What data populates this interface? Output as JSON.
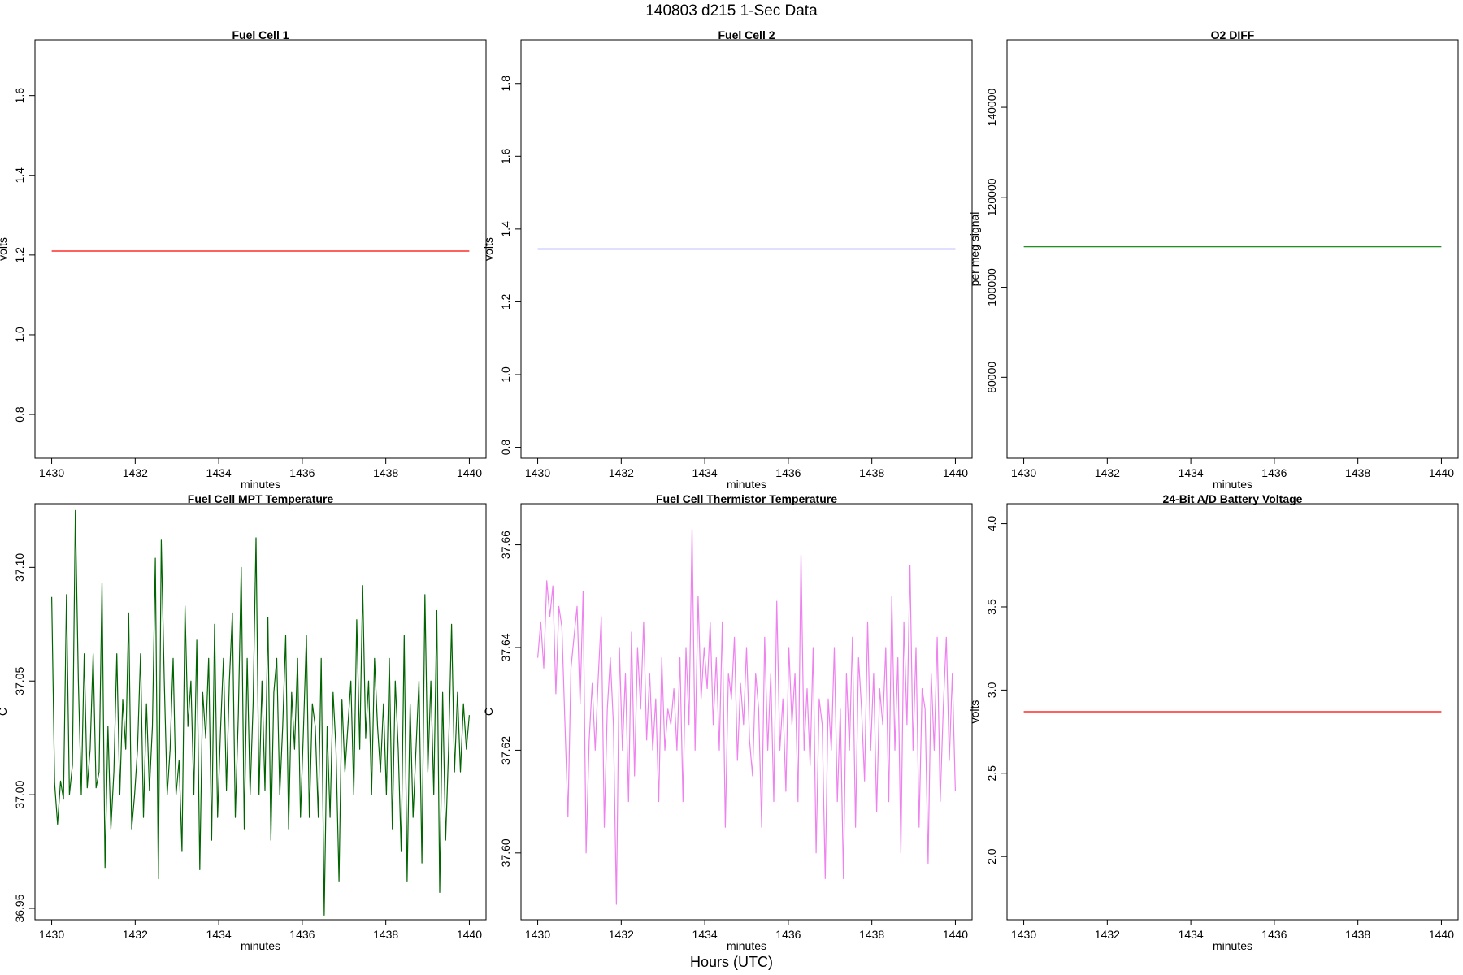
{
  "title": "140803   d215   1-Sec Data",
  "overall_xlabel": "Hours (UTC)",
  "chart_data": [
    {
      "type": "line",
      "title": "Fuel Cell 1",
      "xlabel": "minutes",
      "ylabel": "volts",
      "xlim": [
        1429.6,
        1440.4
      ],
      "ylim": [
        0.69,
        1.74
      ],
      "xticks": [
        1430,
        1432,
        1434,
        1436,
        1438,
        1440
      ],
      "yticks": [
        0.8,
        1.0,
        1.2,
        1.4,
        1.6
      ],
      "ytick_labels": [
        "0.8",
        "1.0",
        "1.2",
        "1.4",
        "1.6"
      ],
      "series": [
        {
          "color": "#ff0000",
          "x": [
            1430,
            1440
          ],
          "y": [
            1.21,
            1.21
          ]
        }
      ]
    },
    {
      "type": "line",
      "title": "Fuel Cell 2",
      "xlabel": "minutes",
      "ylabel": "volts",
      "xlim": [
        1429.6,
        1440.4
      ],
      "ylim": [
        0.77,
        1.92
      ],
      "xticks": [
        1430,
        1432,
        1434,
        1436,
        1438,
        1440
      ],
      "yticks": [
        0.8,
        1.0,
        1.2,
        1.4,
        1.6,
        1.8
      ],
      "ytick_labels": [
        "0.8",
        "1.0",
        "1.2",
        "1.4",
        "1.6",
        "1.8"
      ],
      "series": [
        {
          "color": "#0000ff",
          "x": [
            1430,
            1440
          ],
          "y": [
            1.345,
            1.345
          ]
        }
      ]
    },
    {
      "type": "line",
      "title": "O2 DIFF",
      "xlabel": "minutes",
      "ylabel": "per meg signal",
      "xlim": [
        1429.6,
        1440.4
      ],
      "ylim": [
        62000,
        155000
      ],
      "xticks": [
        1430,
        1432,
        1434,
        1436,
        1438,
        1440
      ],
      "yticks": [
        80000,
        100000,
        120000,
        140000
      ],
      "ytick_labels": [
        "80000",
        "100000",
        "120000",
        "140000"
      ],
      "series": [
        {
          "color": "#008000",
          "x": [
            1430,
            1440
          ],
          "y": [
            109000,
            109000
          ]
        }
      ]
    },
    {
      "type": "line",
      "title": "Fuel Cell MPT Temperature",
      "xlabel": "minutes",
      "ylabel": "C",
      "xlim": [
        1429.6,
        1440.4
      ],
      "ylim": [
        36.945,
        37.128
      ],
      "xticks": [
        1430,
        1432,
        1434,
        1436,
        1438,
        1440
      ],
      "yticks": [
        36.95,
        37.0,
        37.05,
        37.1
      ],
      "ytick_labels": [
        "36.95",
        "37.00",
        "37.05",
        "37.10"
      ],
      "series": [
        {
          "color": "#006400",
          "x_start": 1430,
          "x_end": 1440,
          "y": [
            37.087,
            37.005,
            36.987,
            37.006,
            36.998,
            37.088,
            37.0,
            37.013,
            37.125,
            37.05,
            37.0,
            37.062,
            37.003,
            37.02,
            37.062,
            37.003,
            37.01,
            37.093,
            36.968,
            37.03,
            36.985,
            37.01,
            37.062,
            37.0,
            37.042,
            37.02,
            37.08,
            36.985,
            37.0,
            37.02,
            37.062,
            36.99,
            37.04,
            37.002,
            37.03,
            37.104,
            36.963,
            37.112,
            37.05,
            37.0,
            37.02,
            37.06,
            37.0,
            37.015,
            36.975,
            37.083,
            37.03,
            37.05,
            37.0,
            37.068,
            36.967,
            37.045,
            37.025,
            37.06,
            36.98,
            37.075,
            36.99,
            37.028,
            37.06,
            37.002,
            37.05,
            37.08,
            36.99,
            37.035,
            37.1,
            36.985,
            37.06,
            37.0,
            37.04,
            37.113,
            37.0,
            37.05,
            37.002,
            37.078,
            36.98,
            37.045,
            37.06,
            37.0,
            37.03,
            37.07,
            36.985,
            37.045,
            37.02,
            37.06,
            36.99,
            37.028,
            37.07,
            36.99,
            37.04,
            37.03,
            36.99,
            37.06,
            36.947,
            37.03,
            36.99,
            37.045,
            37.02,
            36.962,
            37.042,
            37.01,
            37.03,
            37.05,
            37.0,
            37.077,
            37.02,
            37.092,
            37.025,
            37.05,
            37.0,
            37.06,
            37.03,
            37.01,
            37.04,
            37.0,
            37.06,
            36.985,
            37.05,
            37.02,
            36.975,
            37.07,
            36.962,
            37.04,
            36.99,
            37.02,
            37.05,
            36.97,
            37.088,
            37.01,
            37.05,
            37.0,
            37.081,
            36.957,
            37.045,
            36.98,
            37.02,
            37.075,
            37.01,
            37.045,
            37.01,
            37.04,
            37.02,
            37.035
          ]
        }
      ]
    },
    {
      "type": "line",
      "title": "Fuel Cell Thermistor Temperature",
      "xlabel": "minutes",
      "ylabel": "C",
      "xlim": [
        1429.6,
        1440.4
      ],
      "ylim": [
        37.587,
        37.668
      ],
      "xticks": [
        1430,
        1432,
        1434,
        1436,
        1438,
        1440
      ],
      "yticks": [
        37.6,
        37.62,
        37.64,
        37.66
      ],
      "ytick_labels": [
        "37.60",
        "37.62",
        "37.64",
        "37.66"
      ],
      "series": [
        {
          "color": "#ee82ee",
          "x_start": 1430,
          "x_end": 1440,
          "y": [
            37.638,
            37.645,
            37.636,
            37.653,
            37.646,
            37.652,
            37.631,
            37.648,
            37.644,
            37.625,
            37.607,
            37.636,
            37.642,
            37.648,
            37.629,
            37.651,
            37.6,
            37.622,
            37.633,
            37.62,
            37.634,
            37.646,
            37.605,
            37.628,
            37.638,
            37.625,
            37.59,
            37.64,
            37.62,
            37.635,
            37.61,
            37.643,
            37.615,
            37.64,
            37.628,
            37.645,
            37.622,
            37.635,
            37.62,
            37.63,
            37.61,
            37.638,
            37.62,
            37.628,
            37.625,
            37.632,
            37.62,
            37.638,
            37.61,
            37.64,
            37.625,
            37.663,
            37.62,
            37.65,
            37.63,
            37.64,
            37.632,
            37.645,
            37.625,
            37.638,
            37.62,
            37.645,
            37.605,
            37.635,
            37.63,
            37.642,
            37.618,
            37.633,
            37.625,
            37.64,
            37.622,
            37.615,
            37.635,
            37.628,
            37.605,
            37.642,
            37.62,
            37.635,
            37.61,
            37.649,
            37.62,
            37.63,
            37.612,
            37.64,
            37.625,
            37.635,
            37.61,
            37.658,
            37.62,
            37.632,
            37.617,
            37.64,
            37.6,
            37.63,
            37.625,
            37.595,
            37.63,
            37.62,
            37.64,
            37.61,
            37.628,
            37.595,
            37.635,
            37.62,
            37.642,
            37.605,
            37.638,
            37.628,
            37.614,
            37.645,
            37.62,
            37.635,
            37.608,
            37.632,
            37.625,
            37.64,
            37.61,
            37.65,
            37.62,
            37.638,
            37.6,
            37.645,
            37.625,
            37.656,
            37.62,
            37.64,
            37.605,
            37.632,
            37.628,
            37.598,
            37.635,
            37.62,
            37.642,
            37.61,
            37.628,
            37.642,
            37.618,
            37.635,
            37.612
          ]
        }
      ]
    },
    {
      "type": "line",
      "title": "24-Bit A/D Battery Voltage",
      "xlabel": "minutes",
      "ylabel": "volts",
      "xlim": [
        1429.6,
        1440.4
      ],
      "ylim": [
        1.62,
        4.12
      ],
      "xticks": [
        1430,
        1432,
        1434,
        1436,
        1438,
        1440
      ],
      "yticks": [
        2.0,
        2.5,
        3.0,
        3.5,
        4.0
      ],
      "ytick_labels": [
        "2.0",
        "2.5",
        "3.0",
        "3.5",
        "4.0"
      ],
      "series": [
        {
          "color": "#ff0000",
          "x": [
            1430,
            1440
          ],
          "y": [
            2.87,
            2.87
          ]
        }
      ]
    }
  ]
}
